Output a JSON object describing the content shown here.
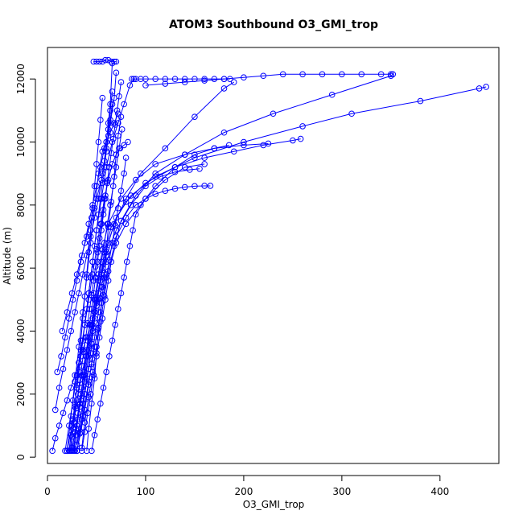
{
  "chart_data": {
    "type": "scatter",
    "title": "ATOM3 Southbound O3_GMI_trop",
    "xlabel": "O3_GMI_trop",
    "ylabel": "Altitude (m)",
    "xlim": [
      0,
      460
    ],
    "ylim": [
      -200,
      13000
    ],
    "xticks": [
      0,
      100,
      200,
      300,
      400
    ],
    "yticks": [
      0,
      2000,
      4000,
      6000,
      8000,
      10000,
      12000
    ],
    "grid": false,
    "legend": "none",
    "marker": "open-circle",
    "line": "connected",
    "color": "#0000ff",
    "series": [
      {
        "x": [
          30,
          34,
          38,
          42,
          45,
          48,
          52,
          55,
          60,
          70,
          80,
          90,
          100,
          110,
          120,
          130,
          140,
          150,
          160,
          166
        ],
        "y": [
          200,
          800,
          1500,
          2300,
          3000,
          3800,
          4600,
          5400,
          6200,
          7000,
          7600,
          8000,
          8200,
          8350,
          8450,
          8520,
          8570,
          8600,
          8610,
          8610
        ]
      },
      {
        "x": [
          25,
          29,
          33,
          38,
          42,
          46,
          50,
          54,
          60,
          70,
          85,
          100,
          115,
          130,
          145,
          155
        ],
        "y": [
          300,
          900,
          1600,
          2400,
          3200,
          4000,
          4800,
          5600,
          6400,
          7200,
          8000,
          8600,
          8900,
          9050,
          9120,
          9150
        ]
      },
      {
        "x": [
          20,
          25,
          30,
          35,
          40,
          45,
          48,
          52,
          56,
          62,
          75,
          90,
          110,
          140,
          170,
          200,
          225
        ],
        "y": [
          200,
          1000,
          1800,
          2600,
          3400,
          4200,
          5000,
          5800,
          6600,
          7400,
          8200,
          8800,
          9300,
          9600,
          9800,
          9900,
          9950
        ]
      },
      {
        "x": [
          28,
          32,
          36,
          40,
          44,
          47,
          50,
          54,
          58,
          65,
          80,
          100,
          130,
          160,
          190,
          220,
          250,
          258
        ],
        "y": [
          200,
          900,
          1700,
          2500,
          3300,
          4100,
          4900,
          5700,
          6500,
          7300,
          8100,
          8700,
          9200,
          9500,
          9700,
          9900,
          10050,
          10100
        ]
      },
      {
        "x": [
          30,
          35,
          38,
          42,
          45,
          48,
          52,
          56,
          62,
          70,
          85,
          110,
          150,
          200,
          260,
          310,
          380,
          440,
          447
        ],
        "y": [
          400,
          1200,
          2000,
          2800,
          3600,
          4400,
          5200,
          6000,
          6800,
          7600,
          8300,
          8900,
          9500,
          10000,
          10500,
          10900,
          11300,
          11700,
          11750
        ]
      },
      {
        "x": [
          35,
          38,
          42,
          46,
          50,
          54,
          58,
          62,
          68,
          75,
          90,
          110,
          140,
          180,
          230,
          290,
          350,
          352
        ],
        "y": [
          300,
          1100,
          1900,
          2700,
          3500,
          4300,
          5100,
          5900,
          6700,
          7500,
          8300,
          9000,
          9600,
          10300,
          10900,
          11500,
          12100,
          12150
        ]
      },
      {
        "x": [
          26,
          30,
          34,
          38,
          42,
          46,
          50,
          55,
          60,
          68,
          80,
          95,
          120,
          150,
          180,
          190
        ],
        "y": [
          200,
          1000,
          1800,
          2600,
          3400,
          4200,
          5000,
          5800,
          6600,
          7400,
          8200,
          9000,
          9800,
          10800,
          11700,
          11900
        ]
      },
      {
        "x": [
          22,
          26,
          30,
          34,
          38,
          42,
          46,
          50,
          55,
          60,
          66,
          72,
          78,
          84,
          88
        ],
        "y": [
          200,
          1200,
          2200,
          3200,
          4200,
          5200,
          6200,
          7200,
          8200,
          9200,
          10000,
          10600,
          11200,
          11800,
          12000
        ]
      },
      {
        "x": [
          8,
          12,
          16,
          20,
          24,
          28,
          32,
          36,
          40,
          44,
          48,
          52,
          56,
          60,
          64,
          68,
          70
        ],
        "y": [
          1500,
          2200,
          2800,
          3400,
          4000,
          4600,
          5200,
          5800,
          6400,
          7000,
          7600,
          8200,
          9000,
          9800,
          10600,
          11400,
          12200
        ]
      },
      {
        "x": [
          10,
          14,
          18,
          22,
          26,
          30,
          34,
          38,
          42,
          46,
          50,
          54,
          58,
          62,
          64,
          66
        ],
        "y": [
          2700,
          3200,
          3800,
          4400,
          5000,
          5600,
          6200,
          6800,
          7400,
          8000,
          8600,
          9200,
          9800,
          10400,
          11000,
          11600
        ]
      },
      {
        "x": [
          15,
          20,
          25,
          30,
          35,
          40,
          45,
          50,
          55,
          58,
          60,
          62,
          64,
          66
        ],
        "y": [
          4000,
          4600,
          5200,
          5800,
          6400,
          7000,
          7600,
          8200,
          8800,
          9400,
          10000,
          10600,
          11200,
          12500
        ]
      },
      {
        "x": [
          5,
          8,
          12,
          16,
          20,
          24,
          28,
          32,
          36,
          40,
          44,
          48,
          52,
          56,
          60
        ],
        "y": [
          200,
          600,
          1000,
          1400,
          1800,
          2200,
          2600,
          3000,
          3400,
          3800,
          4200,
          4600,
          5000,
          5400,
          5800
        ]
      },
      {
        "x": [
          20,
          24,
          28,
          32,
          36,
          40,
          44,
          48,
          52,
          56,
          60,
          64,
          68,
          72
        ],
        "y": [
          200,
          1300,
          2400,
          3500,
          4600,
          5700,
          6800,
          7900,
          9000,
          9700,
          10000,
          10300,
          10600,
          10900
        ]
      },
      {
        "x": [
          40,
          42,
          45,
          48,
          50,
          52,
          55,
          58,
          60,
          62,
          65,
          68,
          70,
          72,
          75
        ],
        "y": [
          200,
          900,
          1700,
          2500,
          3300,
          4100,
          4900,
          5700,
          6500,
          7300,
          8100,
          8900,
          9600,
          10200,
          10800
        ]
      },
      {
        "x": [
          18,
          22,
          26,
          30,
          34,
          38,
          42,
          46,
          50,
          54,
          58,
          62,
          66,
          70,
          74,
          78,
          82
        ],
        "y": [
          200,
          1000,
          1800,
          2600,
          3400,
          4200,
          5000,
          5800,
          6600,
          7400,
          8200,
          8800,
          9300,
          9600,
          9800,
          9900,
          10000
        ]
      },
      {
        "x": [
          25,
          28,
          31,
          34,
          37,
          40,
          43,
          46,
          49,
          52,
          55,
          58,
          61,
          64,
          67,
          70,
          73,
          76
        ],
        "y": [
          200,
          800,
          1400,
          2000,
          2600,
          3200,
          3800,
          4400,
          5000,
          5600,
          6200,
          6800,
          7400,
          8000,
          8600,
          9200,
          9800,
          10400
        ]
      },
      {
        "x": [
          30,
          33,
          36,
          39,
          42,
          45,
          48,
          51,
          54,
          57,
          60,
          63,
          66,
          69,
          72,
          75,
          78,
          80
        ],
        "y": [
          200,
          750,
          1300,
          1850,
          2400,
          2950,
          3500,
          4050,
          4600,
          5150,
          5700,
          6250,
          6800,
          7350,
          7900,
          8450,
          9000,
          9500
        ]
      },
      {
        "x": [
          27,
          29,
          31,
          33,
          35,
          37,
          39,
          41,
          43,
          45,
          47,
          49,
          51,
          53,
          55,
          57,
          59,
          61,
          63
        ],
        "y": [
          200,
          700,
          1200,
          1700,
          2200,
          2700,
          3200,
          3700,
          4200,
          4700,
          5200,
          5700,
          6200,
          6700,
          7200,
          7700,
          8200,
          8700,
          9200
        ]
      },
      {
        "x": [
          24,
          26,
          28,
          30,
          32,
          34,
          36,
          38,
          40,
          42,
          44,
          46,
          48,
          50,
          52,
          54,
          56
        ],
        "y": [
          200,
          900,
          1600,
          2300,
          3000,
          3700,
          4400,
          5100,
          5800,
          6500,
          7200,
          7900,
          8600,
          9300,
          10000,
          10700,
          11400
        ]
      },
      {
        "x": [
          22,
          24,
          26,
          28,
          30,
          32,
          34,
          36,
          38,
          40,
          42,
          44,
          46,
          48,
          50,
          52,
          54,
          56,
          58,
          60,
          62,
          64,
          66
        ],
        "y": [
          200,
          700,
          1200,
          1700,
          2200,
          2700,
          3200,
          3700,
          4200,
          4700,
          5200,
          5700,
          6200,
          6700,
          7200,
          7700,
          8200,
          8700,
          9200,
          9700,
          10200,
          10700,
          11200
        ]
      },
      {
        "x": [
          45,
          48,
          51,
          54,
          57,
          60,
          63,
          66,
          69,
          72,
          75,
          78,
          81,
          84,
          87,
          90,
          100,
          120,
          140,
          160
        ],
        "y": [
          200,
          700,
          1200,
          1700,
          2200,
          2700,
          3200,
          3700,
          4200,
          4700,
          5200,
          5700,
          6200,
          6700,
          7200,
          7700,
          8200,
          8800,
          9200,
          9300
        ]
      },
      {
        "x": [
          35,
          38,
          41,
          44,
          47,
          50,
          53,
          56,
          59,
          62,
          65,
          70,
          80,
          95,
          110,
          130,
          150,
          170,
          185
        ],
        "y": [
          200,
          800,
          1400,
          2000,
          2600,
          3200,
          3800,
          4400,
          5000,
          5600,
          6200,
          6800,
          7400,
          8000,
          8600,
          9200,
          9600,
          9800,
          9900
        ]
      },
      {
        "x": [
          86,
          90,
          95,
          100,
          110,
          120,
          130,
          140,
          150,
          160,
          170,
          180,
          186
        ],
        "y": [
          12000,
          12000,
          12000,
          12000,
          12000,
          12000,
          12000,
          12000,
          12000,
          12000,
          12000,
          12000,
          12000
        ]
      },
      {
        "x": [
          100,
          120,
          140,
          160,
          180,
          200,
          220,
          240,
          260,
          280,
          300,
          320,
          340,
          350
        ],
        "y": [
          11800,
          11850,
          11900,
          11950,
          12000,
          12050,
          12100,
          12150,
          12150,
          12150,
          12150,
          12150,
          12150,
          12150
        ]
      },
      {
        "x": [
          47,
          50,
          53,
          56,
          59,
          62,
          65,
          68,
          70
        ],
        "y": [
          12550,
          12550,
          12550,
          12550,
          12600,
          12600,
          12550,
          12550,
          12550
        ]
      },
      {
        "x": [
          23,
          25,
          27,
          29,
          31,
          33,
          35,
          37,
          39,
          41,
          43,
          45,
          47,
          49,
          51,
          53,
          55,
          57,
          59,
          61,
          63,
          65,
          67,
          69,
          71,
          73,
          75
        ],
        "y": [
          200,
          650,
          1100,
          1550,
          2000,
          2450,
          2900,
          3350,
          3800,
          4250,
          4700,
          5150,
          5600,
          6050,
          6500,
          6950,
          7400,
          7850,
          8300,
          8750,
          9200,
          9650,
          10100,
          10550,
          11000,
          11450,
          11900
        ]
      }
    ]
  }
}
